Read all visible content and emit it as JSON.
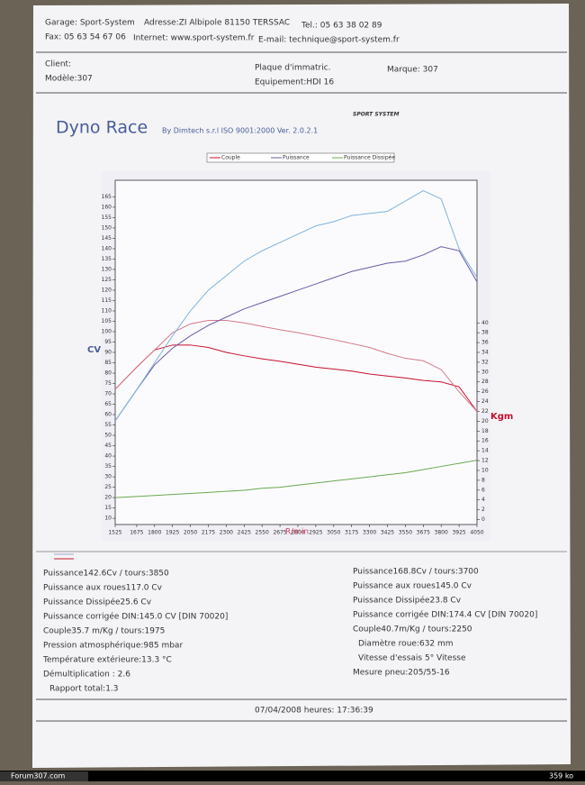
{
  "header": {
    "garage": "Garage: Sport-System",
    "address": "Adresse:ZI Albipole 81150 TERSSAC",
    "tel": "Tel.: 05 63 38 02 89",
    "fax": "Fax: 05 63 54 67 06",
    "internet": "Internet: www.sport-system.fr",
    "email": "E-mail: technique@sport-system.fr"
  },
  "client": {
    "client": "Client:",
    "model": "Modèle:307",
    "plate": "Plaque d'immatric.",
    "equipment": "Equipement:HDI 16",
    "brand": "Marque: 307"
  },
  "report": {
    "title": "Dyno Race",
    "subtitle": "By Dimtech s.r.l  ISO 9001:2000  Ver. 2.0.2.1",
    "logo": "SPORT SYSTEM"
  },
  "chart_data": {
    "type": "line",
    "y_label": "CV",
    "y2_label": "Kgm",
    "x_label": "R/min",
    "x": [
      1525,
      1675,
      1800,
      1925,
      2050,
      2175,
      2300,
      2425,
      2550,
      2675,
      2800,
      2925,
      3050,
      3175,
      3300,
      3425,
      3550,
      3675,
      3800,
      3925,
      4050
    ],
    "xlim": [
      1525,
      4050
    ],
    "xticks": [
      1525,
      1675,
      1800,
      1925,
      2050,
      2175,
      2300,
      2425,
      2550,
      2675,
      2800,
      2925,
      3050,
      3175,
      3300,
      3425,
      3550,
      3675,
      3800,
      3925,
      4050
    ],
    "ylim": [
      7,
      173
    ],
    "yticks": [
      10,
      15,
      20,
      25,
      30,
      35,
      40,
      45,
      50,
      55,
      60,
      65,
      70,
      75,
      80,
      85,
      90,
      95,
      100,
      105,
      110,
      115,
      120,
      125,
      130,
      135,
      140,
      145,
      150,
      155,
      160,
      165
    ],
    "y2lim": [
      -1,
      69
    ],
    "y2ticks": [
      0,
      2,
      4,
      6,
      8,
      10,
      12,
      14,
      16,
      18,
      20,
      22,
      24,
      26,
      28,
      30,
      32,
      34,
      36,
      38,
      40
    ],
    "series": [
      {
        "name": "Couple",
        "color": "#c8102e",
        "axis": "y2",
        "values": [
          26.5,
          31,
          34.5,
          35.5,
          35.5,
          35,
          34,
          33.3,
          32.7,
          32.2,
          31.6,
          31,
          30.6,
          30.2,
          29.6,
          29.2,
          28.8,
          28.3,
          28,
          27,
          22
        ]
      },
      {
        "color": "#d67a8a",
        "axis": "y2",
        "values": [
          26.5,
          31,
          34.5,
          38,
          39.8,
          40.5,
          40.5,
          40,
          39.3,
          38.6,
          38,
          37.3,
          36.6,
          35.8,
          35,
          33.8,
          32.8,
          32.3,
          30.5,
          26,
          22
        ]
      },
      {
        "name": "Puissance",
        "color": "#6a5aa8",
        "values": [
          57,
          72,
          84,
          92,
          98,
          103,
          107,
          111,
          114,
          117,
          120,
          123,
          126,
          129,
          131,
          133,
          134,
          137,
          141,
          139,
          124
        ]
      },
      {
        "color": "#7fb3dc",
        "values": [
          57,
          72,
          85,
          98,
          110,
          120,
          127,
          134,
          139,
          143,
          147,
          151,
          153,
          156,
          157,
          158,
          163,
          168,
          164,
          140,
          126
        ]
      },
      {
        "name": "Puissance Dissipée",
        "color": "#6aa84f",
        "values": [
          20,
          20.5,
          21,
          21.5,
          22,
          22.5,
          23,
          23.5,
          24.5,
          25,
          26,
          27,
          28,
          29,
          30,
          31,
          32,
          33.5,
          35,
          36.5,
          38
        ]
      }
    ]
  },
  "results": {
    "left": [
      "Puissance142.6Cv / tours:3850",
      "Puissance aux roues117.0 Cv",
      "Puissance Dissipée25.6 Cv",
      "Puissance corrigée DIN:145.0 CV  [DIN 70020]",
      "Couple35.7 m/Kg / tours:1975",
      "Pression atmosphérique:985 mbar",
      "Température extérieure:13.3 °C",
      "Démultiplication : 2.6",
      "Rapport total:1.3"
    ],
    "right": [
      "Puissance168.8Cv / tours:3700",
      "Puissance aux roues145.0 Cv",
      "Puissance Dissipée23.8 Cv",
      "Puissance corrigée DIN:174.4 CV  [DIN 70020]",
      "Couple40.7m/Kg / tours:2250",
      "Diamètre roue:632 mm",
      "Vitesse d'essais 5° Vitesse",
      "Mesure pneu:205/55-16"
    ]
  },
  "footer": {
    "datetime": "07/04/2008 heures: 17:36:39"
  },
  "watermark": {
    "site": "Forum307.com",
    "size": "359 ko"
  }
}
